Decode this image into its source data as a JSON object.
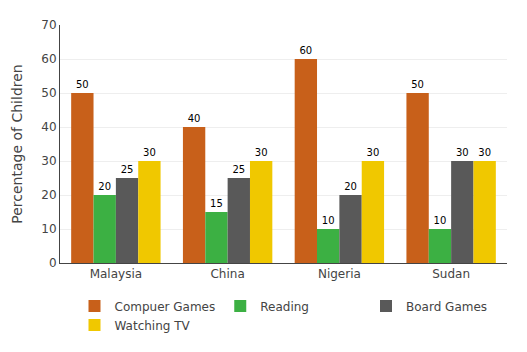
{
  "chart_data": {
    "type": "bar",
    "categories": [
      "Malaysia",
      "China",
      "Nigeria",
      "Sudan"
    ],
    "series": [
      {
        "name": "Compuer Games",
        "color": "#C8601A",
        "values": [
          50,
          40,
          60,
          50
        ]
      },
      {
        "name": "Reading",
        "color": "#3CB043",
        "values": [
          20,
          15,
          10,
          10
        ]
      },
      {
        "name": "Board Games",
        "color": "#595959",
        "values": [
          25,
          25,
          20,
          30
        ]
      },
      {
        "name": "Watching TV",
        "color": "#F0C800",
        "values": [
          30,
          30,
          30,
          30
        ]
      }
    ],
    "ylabel": "Percentage of Children",
    "ylim": [
      0,
      70
    ],
    "yticks": [
      0,
      10,
      20,
      30,
      40,
      50,
      60,
      70
    ],
    "grid": true,
    "data_labels": true,
    "legend": "bottom"
  }
}
